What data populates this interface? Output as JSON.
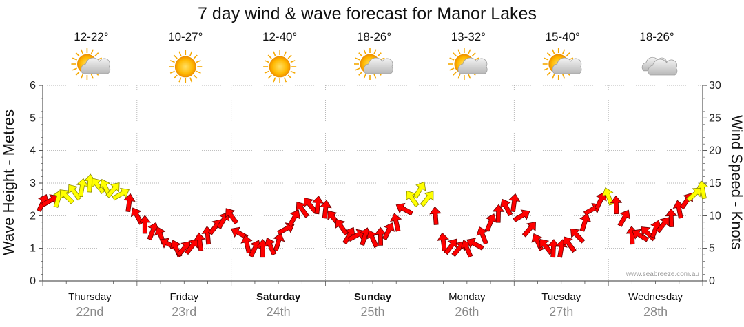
{
  "chart_data": {
    "type": "line",
    "title": "7 day wind & wave forecast for Manor Lakes",
    "ylabel_left": "Wave Height - Metres",
    "ylabel_right": "Wind Speed - Knots",
    "ylim_left": [
      0,
      6
    ],
    "ylim_right": [
      0,
      30
    ],
    "yticks_left": [
      0,
      1,
      2,
      3,
      4,
      5,
      6
    ],
    "yticks_right": [
      0,
      5,
      10,
      15,
      20,
      25,
      30
    ],
    "grid": true,
    "credit": "www.seabreeze.com.au",
    "days": [
      {
        "name": "Thursday",
        "date": "22nd",
        "temp": "12-22°",
        "weather": "sun-cloud-icon",
        "bold": false
      },
      {
        "name": "Friday",
        "date": "23rd",
        "temp": "10-27°",
        "weather": "sun-icon",
        "bold": false
      },
      {
        "name": "Saturday",
        "date": "24th",
        "temp": "12-40°",
        "weather": "sun-icon",
        "bold": true
      },
      {
        "name": "Sunday",
        "date": "25th",
        "temp": "18-26°",
        "weather": "sun-cloud-icon",
        "bold": true
      },
      {
        "name": "Monday",
        "date": "26th",
        "temp": "13-32°",
        "weather": "sun-cloud-icon",
        "bold": false
      },
      {
        "name": "Tuesday",
        "date": "27th",
        "temp": "15-40°",
        "weather": "sun-cloud-icon",
        "bold": false
      },
      {
        "name": "Wednesday",
        "date": "28th",
        "temp": "18-26°",
        "weather": "cloud-icon",
        "bold": false
      }
    ],
    "series": [
      {
        "name": "Wind Speed",
        "unit": "knots",
        "x_unit": "hours from Thursday 00:00",
        "points": [
          [
            0,
            12
          ],
          [
            3,
            12.5
          ],
          [
            6,
            13
          ],
          [
            9,
            14
          ],
          [
            12,
            15
          ],
          [
            15,
            14.5
          ],
          [
            18,
            14
          ],
          [
            21,
            13
          ],
          [
            24,
            10
          ],
          [
            27,
            8
          ],
          [
            30,
            7
          ],
          [
            33,
            5
          ],
          [
            36,
            5
          ],
          [
            39,
            5.5
          ],
          [
            42,
            7
          ],
          [
            45,
            9
          ],
          [
            48,
            10
          ],
          [
            51,
            6
          ],
          [
            54,
            5
          ],
          [
            57,
            5
          ],
          [
            60,
            6
          ],
          [
            63,
            9
          ],
          [
            66,
            11
          ],
          [
            69,
            12
          ],
          [
            72,
            11
          ],
          [
            75,
            9
          ],
          [
            78,
            7
          ],
          [
            81,
            7
          ],
          [
            84,
            6.5
          ],
          [
            87,
            7
          ],
          [
            90,
            9
          ],
          [
            93,
            12
          ],
          [
            96,
            14
          ],
          [
            99,
            12
          ],
          [
            102,
            6
          ],
          [
            105,
            5
          ],
          [
            108,
            5
          ],
          [
            111,
            6
          ],
          [
            114,
            9
          ],
          [
            117,
            11
          ],
          [
            120,
            12
          ],
          [
            123,
            9
          ],
          [
            126,
            6
          ],
          [
            129,
            5
          ],
          [
            132,
            5
          ],
          [
            135,
            6
          ],
          [
            138,
            9
          ],
          [
            141,
            12
          ],
          [
            144,
            13
          ],
          [
            147,
            11
          ],
          [
            150,
            7
          ],
          [
            153,
            7
          ],
          [
            156,
            8
          ],
          [
            159,
            9
          ],
          [
            162,
            11
          ],
          [
            165,
            13
          ],
          [
            168,
            14
          ]
        ],
        "color_rule": "yellow-above-12.5-knots-else-red"
      }
    ]
  }
}
